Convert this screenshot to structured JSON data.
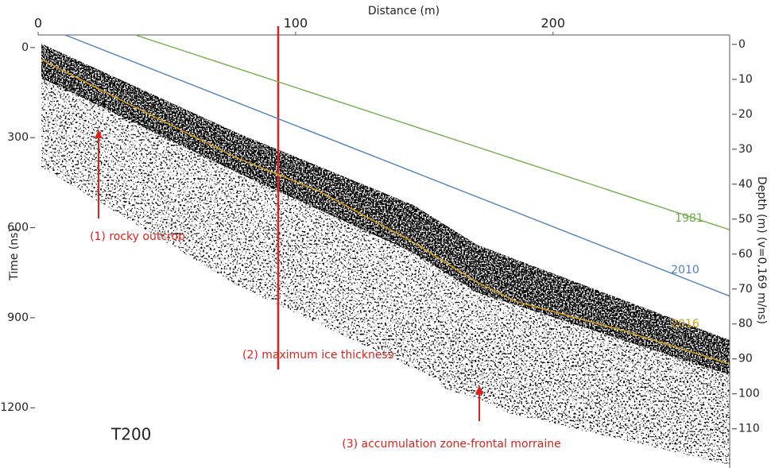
{
  "chart_data": {
    "type": "radargram",
    "x_label": "Distance (m)",
    "y_label": "Time (ns)",
    "y2_label": "Depth (m) (v=0,169 m/ns)",
    "xlim": [
      0,
      268
    ],
    "xticks": [
      0,
      100,
      200
    ],
    "ylim": [
      -42,
      1390
    ],
    "yticks": [
      0,
      300,
      600,
      900,
      1200
    ],
    "y_inverted": true,
    "y2lim": [
      -2.7,
      120.3
    ],
    "y2ticks": [
      0,
      10,
      20,
      30,
      40,
      50,
      60,
      70,
      80,
      90,
      100,
      110
    ],
    "y2_inverted": true,
    "profile": "T200",
    "series": [
      {
        "name": "1981",
        "color": "#70ad47",
        "axis": "y2",
        "x": [
          37.7,
          268.5
        ],
        "values": [
          -2.7,
          53
        ]
      },
      {
        "name": "2010",
        "color": "#4f81bd",
        "axis": "y2",
        "x": [
          10.5,
          268.5
        ],
        "values": [
          -2.7,
          72
        ]
      },
      {
        "name": "2016",
        "color": "#d4a017",
        "axis": "y2",
        "x": [
          1.2,
          31.5,
          77.8,
          108.6,
          145.7,
          170.4,
          185.8,
          225.9,
          268.5
        ],
        "values": [
          4.3,
          15.7,
          32.7,
          41.8,
          56.6,
          68.0,
          73.6,
          81.6,
          91.4
        ]
      }
    ],
    "annotations": [
      "(1) rocky outcrop",
      "(2) maximum ice thickness",
      "(3) accumulation zone-frontal morraine"
    ]
  }
}
